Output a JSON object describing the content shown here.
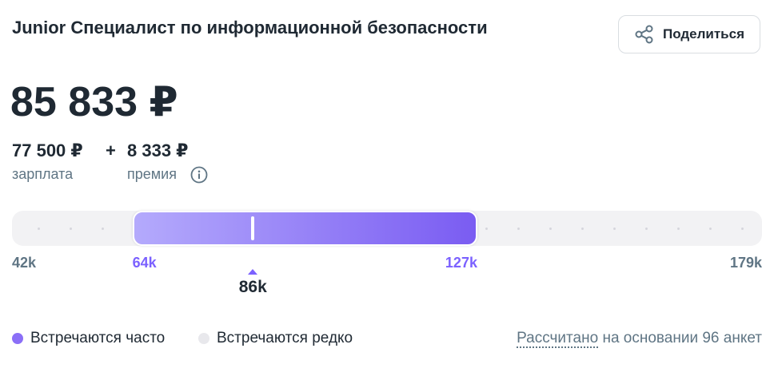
{
  "header": {
    "title": "Junior Специалист по информационной безопасности",
    "share_button": "Поделиться"
  },
  "salary": {
    "total": "85 833 ₽",
    "operator": "+",
    "base": {
      "amount": "77 500 ₽",
      "label": "зарплата"
    },
    "bonus": {
      "amount": "8 333 ₽",
      "label": "премия"
    }
  },
  "range": {
    "min": {
      "value": 42000,
      "label": "42k"
    },
    "max": {
      "value": 179000,
      "label": "179k"
    },
    "common_low": {
      "value": 64000,
      "label": "64k"
    },
    "common_high": {
      "value": 127000,
      "label": "127k"
    },
    "median": {
      "value": 86000,
      "label": "86k"
    }
  },
  "legend": {
    "frequent": "Встречаются часто",
    "rare": "Встречаются редко"
  },
  "footnote": {
    "link": "Рассчитано",
    "text": "на основании 96 анкет"
  }
}
